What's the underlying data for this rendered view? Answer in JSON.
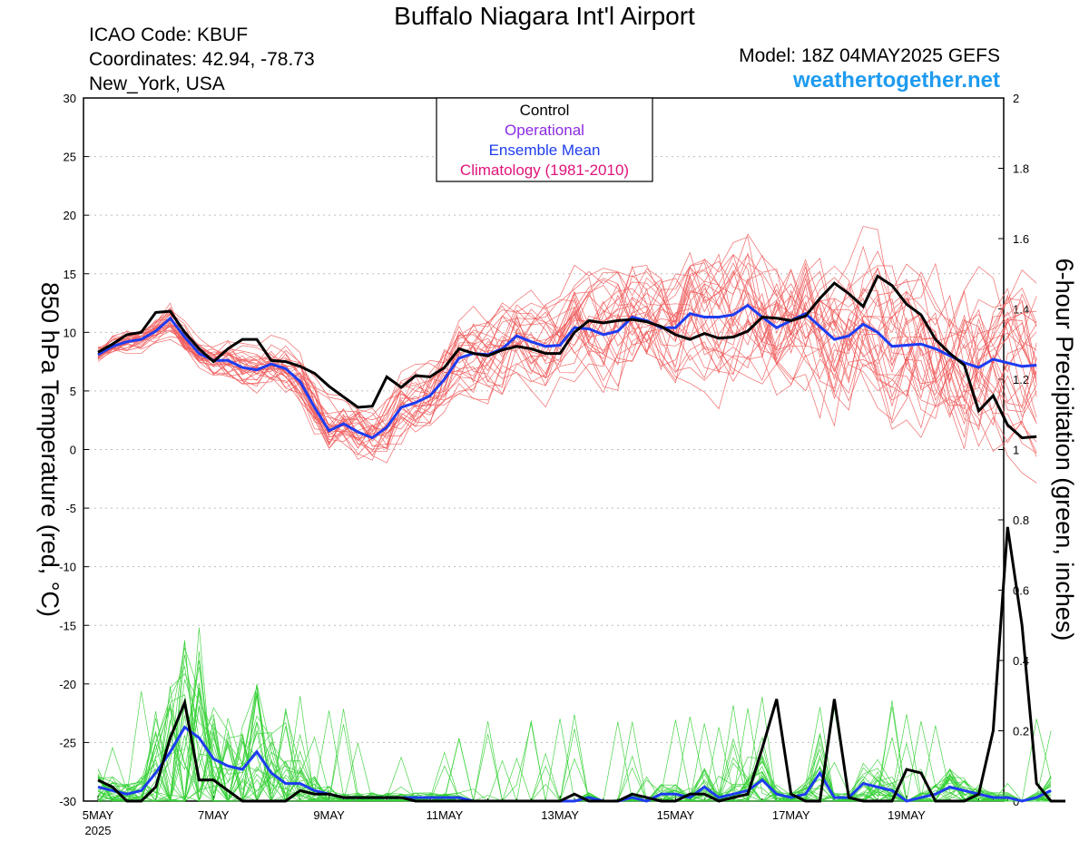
{
  "header": {
    "title": "Buffalo Niagara Int'l Airport",
    "icao": "ICAO Code: KBUF",
    "coords": "Coordinates: 42.94, -78.73",
    "location": "New_York, USA",
    "model": "Model: 18Z 04MAY2025 GEFS",
    "site": "weathertogether.net"
  },
  "colors": {
    "member_temp": "#f05a5a",
    "member_precip": "#35d035",
    "control": "#000000",
    "operational": "#8a2be2",
    "mean": "#1e3cf0",
    "climatology": "#e0137a",
    "site": "#1e9bf0"
  },
  "chart_data": {
    "type": "line",
    "ylabel": "850 hPa Temperature (red, °C)",
    "y2label": "6-hour Precipitation (green, inches)",
    "ylim": [
      -30,
      30
    ],
    "yticks": [
      -30,
      -25,
      -20,
      -15,
      -10,
      -5,
      0,
      5,
      10,
      15,
      20,
      25,
      30
    ],
    "y2lim": [
      0,
      2
    ],
    "y2ticks": [
      "0",
      "0.2",
      "0.4",
      "0.6",
      "0.8",
      "1",
      "1.2",
      "1.4",
      "1.6",
      "1.8",
      "2"
    ],
    "x_start": "5MAY 2025 00Z",
    "x_step_hours": 6,
    "xlim": [
      0,
      63
    ],
    "xticks": [
      {
        "label": "5MAY",
        "sub": "2025",
        "x": 0
      },
      {
        "label": "7MAY",
        "x": 8
      },
      {
        "label": "9MAY",
        "x": 16
      },
      {
        "label": "11MAY",
        "x": 24
      },
      {
        "label": "13MAY",
        "x": 32
      },
      {
        "label": "15MAY",
        "x": 40
      },
      {
        "label": "17MAY",
        "x": 48
      },
      {
        "label": "19MAY",
        "x": 56
      }
    ],
    "grid": "dotted horizontal",
    "legend": {
      "position": "top-center",
      "entries": [
        {
          "label": "Control",
          "color": "#000000"
        },
        {
          "label": "Operational",
          "color": "#8a2be2"
        },
        {
          "label": "Ensemble Mean",
          "color": "#1e3cf0"
        },
        {
          "label": "Climatology (1981-2010)",
          "color": "#e0137a"
        }
      ]
    },
    "control_temp": [
      8.3,
      9.0,
      9.8,
      10.0,
      11.7,
      11.8,
      10.0,
      8.6,
      7.5,
      8.6,
      9.4,
      9.4,
      7.6,
      7.5,
      7.1,
      6.5,
      5.4,
      4.5,
      3.6,
      3.7,
      6.2,
      5.3,
      6.3,
      6.2,
      7.0,
      8.6,
      8.2,
      8.0,
      8.5,
      8.8,
      8.6,
      8.2,
      8.2,
      10.0,
      11.0,
      10.8,
      11.0,
      11.1,
      10.9,
      10.5,
      9.8,
      9.4,
      9.9,
      9.5,
      9.6,
      10.1,
      11.3,
      11.2,
      11.0,
      11.4,
      12.9,
      14.2,
      13.3,
      12.2,
      14.8,
      14.0,
      12.4,
      11.5,
      9.4,
      8.2,
      7.2,
      3.3,
      4.6,
      2.1,
      1.0,
      1.1
    ],
    "mean_temp": [
      8.1,
      8.8,
      9.2,
      9.4,
      10.1,
      11.2,
      9.6,
      8.2,
      7.6,
      7.6,
      7.0,
      6.8,
      7.3,
      6.9,
      5.8,
      3.6,
      1.6,
      2.2,
      1.5,
      1.0,
      1.9,
      3.6,
      4.0,
      4.6,
      6.0,
      7.8,
      8.2,
      8.1,
      8.6,
      9.7,
      9.2,
      8.8,
      8.9,
      10.4,
      10.3,
      9.8,
      10.1,
      11.3,
      11.0,
      10.4,
      10.4,
      11.6,
      11.3,
      11.3,
      11.5,
      12.3,
      11.3,
      10.4,
      11.0,
      11.6,
      10.5,
      9.4,
      9.7,
      10.7,
      10.0,
      8.8,
      8.9,
      9.0,
      8.6,
      8.0,
      7.4,
      7.0,
      7.7,
      7.4,
      7.1,
      7.2
    ],
    "control_precip": [
      0.06,
      0.04,
      0.0,
      0.0,
      0.04,
      0.18,
      0.28,
      0.06,
      0.06,
      0.03,
      0.0,
      0.0,
      0.0,
      0.0,
      0.03,
      0.02,
      0.02,
      0.01,
      0.01,
      0.01,
      0.01,
      0.01,
      0.0,
      0.0,
      0.0,
      0.0,
      0.0,
      0.0,
      0.0,
      0.0,
      0.0,
      0.0,
      0.0,
      0.02,
      0.0,
      0.0,
      0.0,
      0.02,
      0.01,
      0.0,
      0.0,
      0.02,
      0.02,
      0.0,
      0.01,
      0.02,
      0.15,
      0.29,
      0.02,
      0.0,
      0.0,
      0.29,
      0.01,
      0.0,
      0.0,
      0.0,
      0.09,
      0.08,
      0.0,
      0.0,
      0.0,
      0.02,
      0.2,
      0.78,
      0.5,
      0.05,
      0.0,
      0.0
    ],
    "mean_precip": [
      0.04,
      0.03,
      0.02,
      0.03,
      0.08,
      0.14,
      0.21,
      0.18,
      0.12,
      0.1,
      0.09,
      0.14,
      0.08,
      0.05,
      0.05,
      0.03,
      0.02,
      0.01,
      0.01,
      0.01,
      0.01,
      0.01,
      0.01,
      0.01,
      0.01,
      0.01,
      0.0,
      0.0,
      0.0,
      0.0,
      0.0,
      0.0,
      0.0,
      0.0,
      0.01,
      0.0,
      0.0,
      0.01,
      0.0,
      0.02,
      0.02,
      0.01,
      0.04,
      0.01,
      0.02,
      0.03,
      0.06,
      0.02,
      0.01,
      0.02,
      0.08,
      0.01,
      0.01,
      0.05,
      0.04,
      0.03,
      0.0,
      0.01,
      0.02,
      0.04,
      0.03,
      0.02,
      0.01,
      0.01,
      0.0,
      0.01,
      0.03
    ]
  }
}
